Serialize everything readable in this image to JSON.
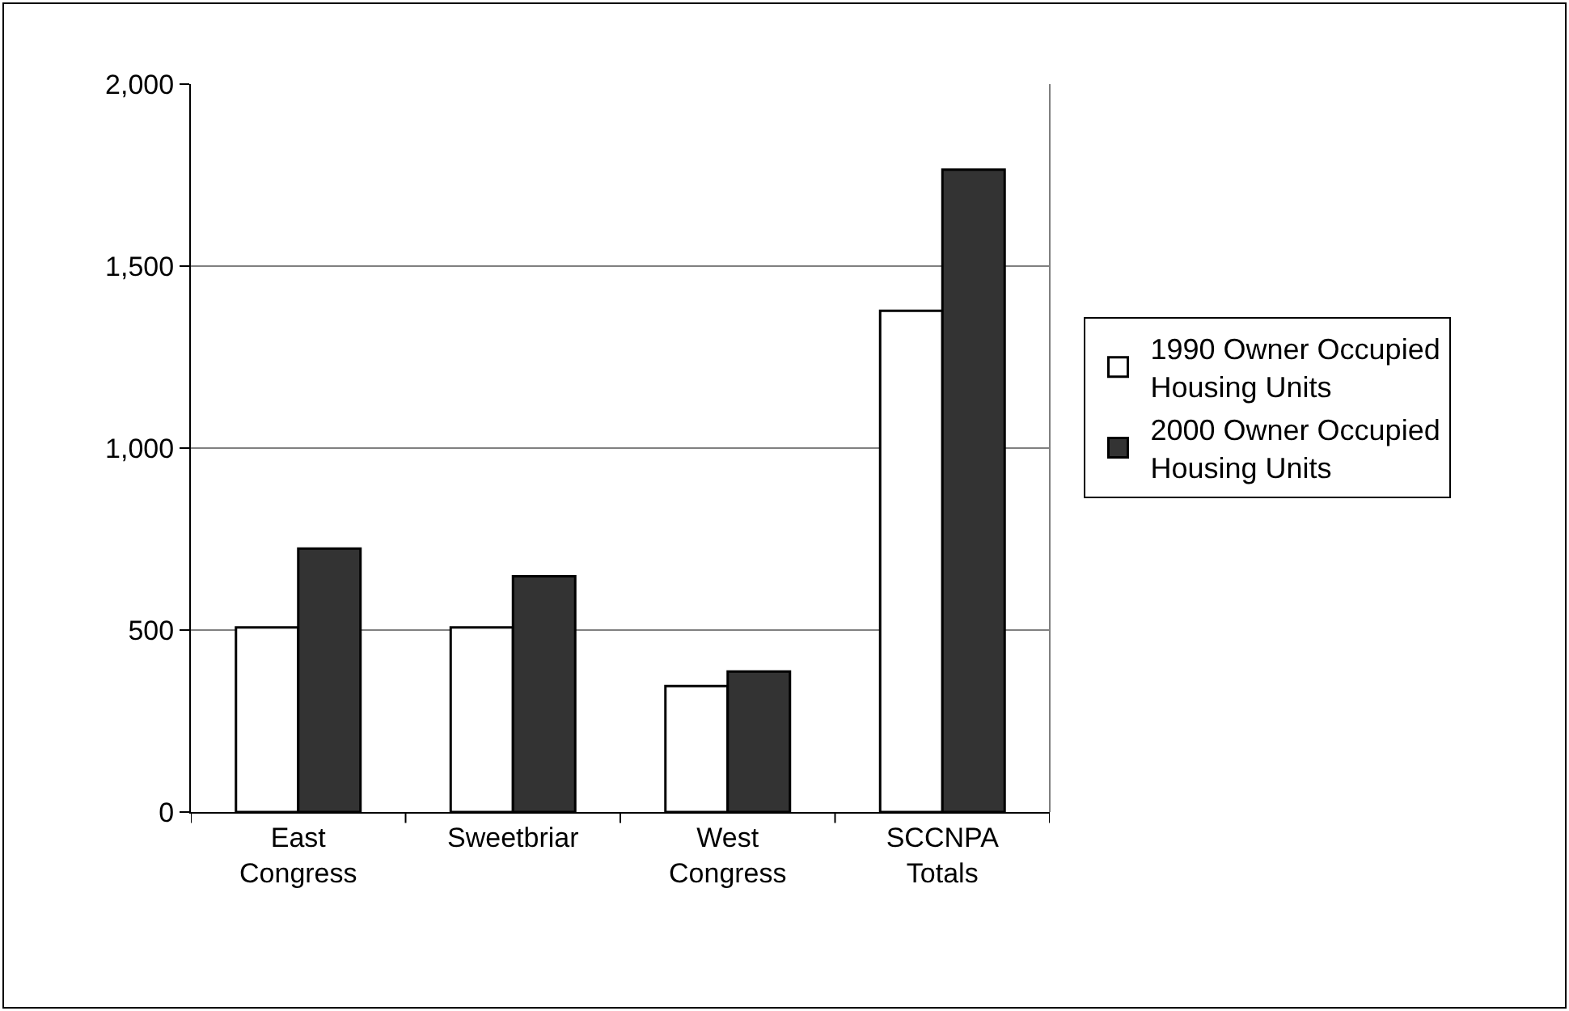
{
  "chart_data": {
    "type": "bar",
    "categories": [
      "East Congress",
      "Sweetbriar",
      "West Congress",
      "SCCNPA Totals"
    ],
    "series": [
      {
        "name": "1990 Owner Occupied Housing Units",
        "color": "#ffffff",
        "values": [
          507,
          507,
          346,
          1377
        ]
      },
      {
        "name": "2000 Owner Occupied Housing Units",
        "color": "#333333",
        "values": [
          724,
          648,
          386,
          1765
        ]
      }
    ],
    "ylim": [
      0,
      2000
    ],
    "yticks": [
      {
        "value": 0,
        "label": "0"
      },
      {
        "value": 500,
        "label": "500"
      },
      {
        "value": 1000,
        "label": "1,000"
      },
      {
        "value": 1500,
        "label": "1,500"
      },
      {
        "value": 2000,
        "label": "2,000"
      }
    ],
    "grid": "y",
    "legend": "right"
  }
}
